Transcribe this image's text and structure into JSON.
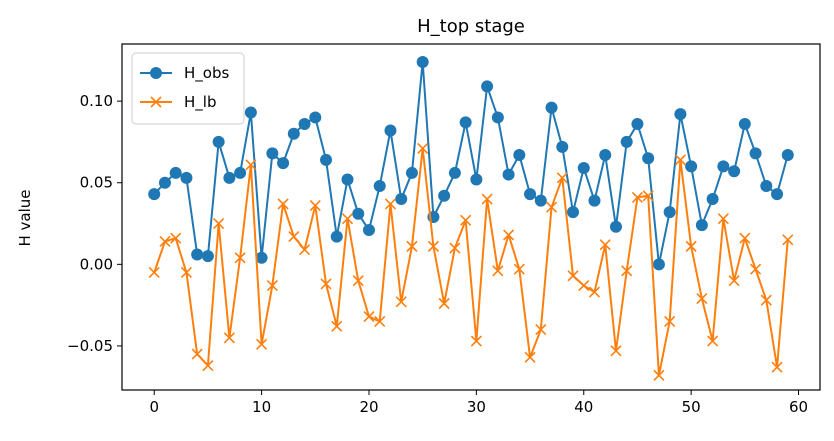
{
  "chart_data": {
    "type": "line",
    "title": "H_top stage",
    "xlabel": "",
    "ylabel": "H value",
    "xlim": [
      -3,
      62
    ],
    "ylim": [
      -0.077,
      0.135
    ],
    "xticks": [
      0,
      10,
      20,
      30,
      40,
      50,
      60
    ],
    "xtick_labels": [
      "0",
      "10",
      "20",
      "30",
      "40",
      "50",
      "60"
    ],
    "yticks": [
      -0.05,
      0.0,
      0.05,
      0.1
    ],
    "ytick_labels": [
      "−0.05",
      "0.00",
      "0.05",
      "0.10"
    ],
    "grid": false,
    "legend_position": "top-left",
    "x": [
      0,
      1,
      2,
      3,
      4,
      5,
      6,
      7,
      8,
      9,
      10,
      11,
      12,
      13,
      14,
      15,
      16,
      17,
      18,
      19,
      20,
      21,
      22,
      23,
      24,
      25,
      26,
      27,
      28,
      29,
      30,
      31,
      32,
      33,
      34,
      35,
      36,
      37,
      38,
      39,
      40,
      41,
      42,
      43,
      44,
      45,
      46,
      47,
      48,
      49,
      50,
      51,
      52,
      53,
      54,
      55,
      56,
      57,
      58,
      59
    ],
    "series": [
      {
        "name": "H_obs",
        "color": "#1f77b4",
        "marker": "circle",
        "values": [
          0.043,
          0.05,
          0.056,
          0.053,
          0.006,
          0.005,
          0.075,
          0.053,
          0.056,
          0.093,
          0.004,
          0.068,
          0.062,
          0.08,
          0.086,
          0.09,
          0.064,
          0.017,
          0.052,
          0.031,
          0.021,
          0.048,
          0.082,
          0.04,
          0.056,
          0.124,
          0.029,
          0.042,
          0.056,
          0.087,
          0.052,
          0.109,
          0.09,
          0.055,
          0.067,
          0.043,
          0.039,
          0.096,
          0.072,
          0.032,
          0.059,
          0.039,
          0.067,
          0.023,
          0.075,
          0.086,
          0.065,
          0.0,
          0.032,
          0.092,
          0.06,
          0.024,
          0.04,
          0.06,
          0.057,
          0.086,
          0.068,
          0.048,
          0.043,
          0.067
        ]
      },
      {
        "name": "H_lb",
        "color": "#ff7f0e",
        "marker": "x",
        "values": [
          -0.005,
          0.014,
          0.016,
          -0.005,
          -0.055,
          -0.062,
          0.025,
          -0.045,
          0.004,
          0.061,
          -0.049,
          -0.013,
          0.037,
          0.017,
          0.009,
          0.036,
          -0.012,
          -0.038,
          0.028,
          -0.01,
          -0.032,
          -0.035,
          0.037,
          -0.023,
          0.011,
          0.071,
          0.011,
          -0.024,
          0.01,
          0.027,
          -0.047,
          0.04,
          -0.004,
          0.018,
          -0.003,
          -0.057,
          -0.04,
          0.035,
          0.053,
          -0.007,
          -0.013,
          -0.017,
          0.012,
          -0.053,
          -0.004,
          0.041,
          0.042,
          -0.068,
          -0.035,
          0.064,
          0.011,
          -0.021,
          -0.047,
          0.028,
          -0.01,
          0.016,
          -0.003,
          -0.022,
          -0.063,
          0.015
        ]
      }
    ]
  }
}
